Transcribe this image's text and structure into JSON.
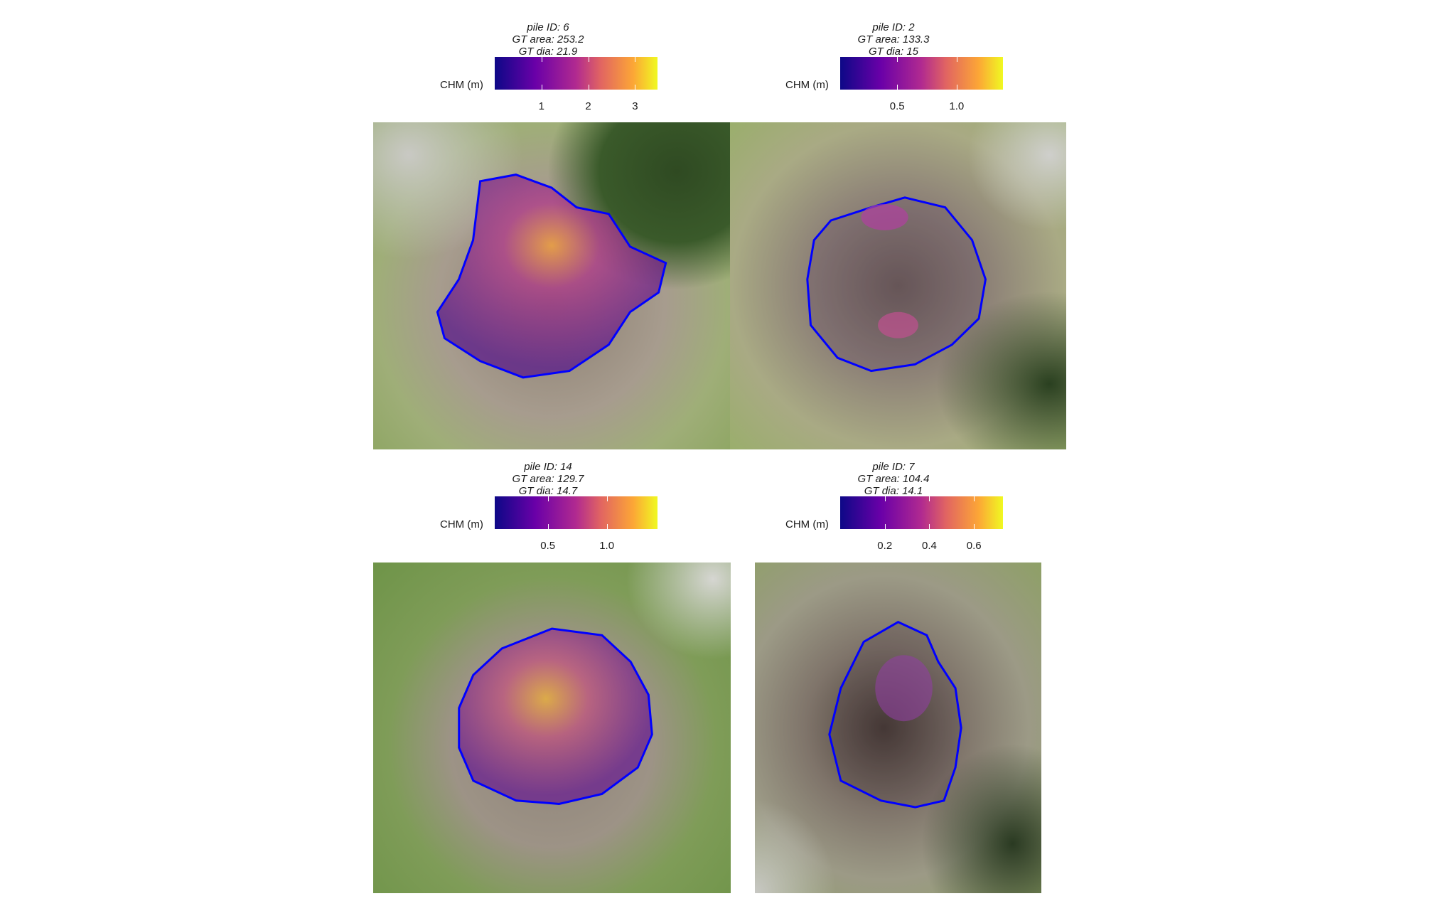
{
  "legend_title": "CHM (m)",
  "colors": {
    "outline": "#0000ff",
    "palette": "plasma"
  },
  "panels": [
    {
      "pile_id": "pile ID: 6",
      "gt_area": "GT area: 253.2",
      "gt_dia": "GT dia: 21.9",
      "range": [
        0,
        3.48
      ],
      "ticks": [
        1,
        2,
        3
      ],
      "tick_labels": [
        "1",
        "2",
        "3"
      ]
    },
    {
      "pile_id": "pile ID: 2",
      "gt_area": "GT area: 133.3",
      "gt_dia": "GT dia: 15",
      "range": [
        0.02,
        1.39
      ],
      "ticks": [
        0.5,
        1.0
      ],
      "tick_labels": [
        "0.5",
        "1.0"
      ]
    },
    {
      "pile_id": "pile ID: 14",
      "gt_area": "GT area: 129.7",
      "gt_dia": "GT dia: 14.7",
      "range": [
        0.05,
        1.43
      ],
      "ticks": [
        0.5,
        1.0
      ],
      "tick_labels": [
        "0.5",
        "1.0"
      ]
    },
    {
      "pile_id": "pile ID: 7",
      "gt_area": "GT area: 104.4",
      "gt_dia": "GT dia: 14.1",
      "range": [
        0.0,
        0.73
      ],
      "ticks": [
        0.2,
        0.4,
        0.6
      ],
      "tick_labels": [
        "0.2",
        "0.4",
        "0.6"
      ]
    }
  ]
}
